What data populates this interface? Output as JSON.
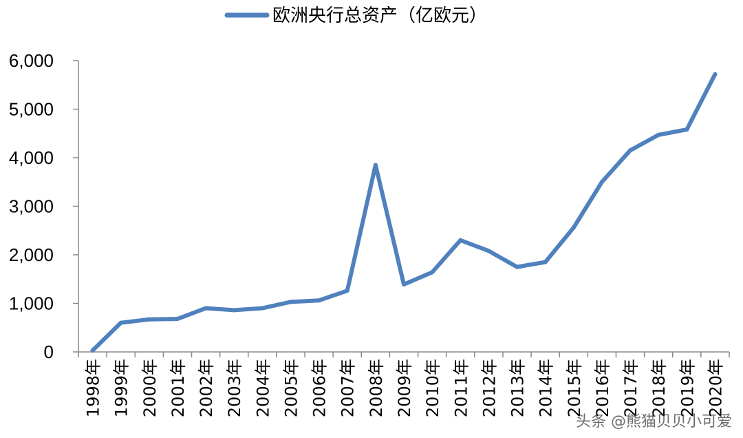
{
  "chart_data": {
    "type": "line",
    "title": "",
    "xlabel": "",
    "ylabel": "",
    "ylim": [
      0,
      6000
    ],
    "y_ticks": [
      0,
      1000,
      2000,
      3000,
      4000,
      5000,
      6000
    ],
    "y_tick_labels": [
      "0",
      "1,000",
      "2,000",
      "3,000",
      "4,000",
      "5,000",
      "6,000"
    ],
    "categories": [
      "1998年",
      "1999年",
      "2000年",
      "2001年",
      "2002年",
      "2003年",
      "2004年",
      "2005年",
      "2006年",
      "2007年",
      "2008年",
      "2009年",
      "2010年",
      "2011年",
      "2012年",
      "2013年",
      "2014年",
      "2015年",
      "2016年",
      "2017年",
      "2018年",
      "2019年",
      "2020年"
    ],
    "series": [
      {
        "name": "欧洲央行总资产（亿欧元）",
        "color": "#4F81BD",
        "values": [
          30,
          600,
          670,
          680,
          900,
          860,
          900,
          1030,
          1060,
          1260,
          3850,
          1390,
          1640,
          2300,
          2080,
          1750,
          1850,
          2560,
          3500,
          4150,
          4470,
          4580,
          5720
        ]
      }
    ],
    "legend_position": "top-center",
    "grid": false
  },
  "watermark": "头条 @熊猫贝贝小可爱"
}
